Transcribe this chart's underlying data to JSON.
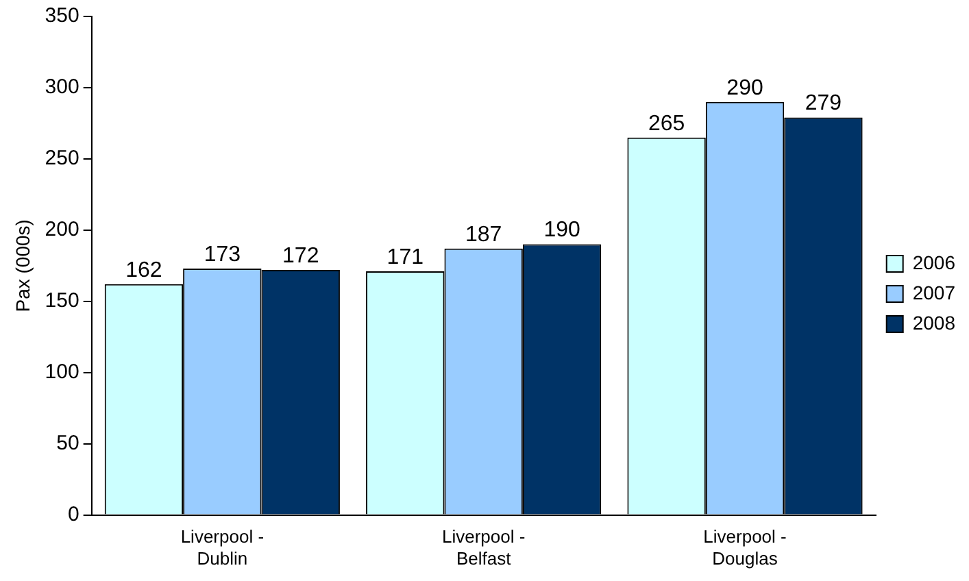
{
  "chart_data": {
    "type": "bar",
    "ylabel": "Pax (000s)",
    "categories": [
      "Liverpool - Dublin",
      "Liverpool - Belfast",
      "Liverpool - Douglas"
    ],
    "series": [
      {
        "name": "2006",
        "color": "#ccffff",
        "values": [
          162,
          171,
          265
        ]
      },
      {
        "name": "2007",
        "color": "#99ccff",
        "values": [
          173,
          187,
          290
        ]
      },
      {
        "name": "2008",
        "color": "#003366",
        "values": [
          172,
          190,
          279
        ]
      }
    ],
    "ylim": [
      0,
      350
    ],
    "yticks": [
      0,
      50,
      100,
      150,
      200,
      250,
      300,
      350
    ],
    "data_labels": true,
    "legend": "right",
    "grid": false
  }
}
